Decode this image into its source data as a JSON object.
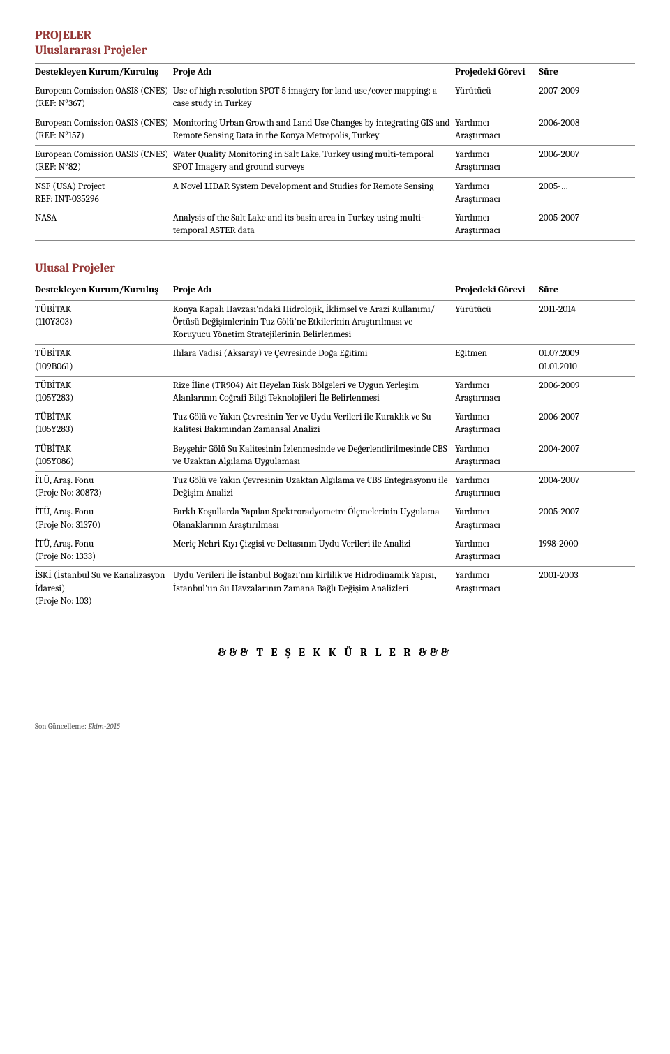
{
  "sectionTitle": "PROJELER",
  "intl": {
    "title": "Uluslararası Projeler",
    "headers": {
      "org": "Destekleyen Kurum/Kuruluş",
      "proj": "Proje Adı",
      "role": "Projedeki Görevi",
      "dur": "Süre"
    },
    "rows": [
      {
        "org": "European Comission OASIS (CNES)\n(REF: N°367)",
        "proj": "Use of high resolution SPOT-5 imagery for land use/cover mapping: a case study in Turkey",
        "role": "Yürütücü",
        "dur": "2007-2009"
      },
      {
        "org": "European Comission OASIS (CNES)\n(REF: N°157)",
        "proj": "Monitoring Urban Growth and Land Use Changes by integrating GIS and Remote Sensing Data in the Konya Metropolis, Turkey",
        "role": "Yardımcı Araştırmacı",
        "dur": "2006-2008"
      },
      {
        "org": "European Comission OASIS (CNES)\n(REF: N°82)",
        "proj": "Water Quality Monitoring in Salt Lake, Turkey using multi-temporal SPOT Imagery and ground surveys",
        "role": "Yardımcı Araştırmacı",
        "dur": "2006-2007"
      },
      {
        "org": "NSF (USA) Project\nREF: INT-035296",
        "proj": "A Novel LIDAR System Development and Studies for Remote Sensing",
        "role": "Yardımcı Araştırmacı",
        "dur": "2005-…"
      },
      {
        "org": "NASA",
        "proj": "Analysis of the Salt Lake and its basin area in Turkey using multi-temporal ASTER data",
        "role": "Yardımcı Araştırmacı",
        "dur": "2005-2007"
      }
    ]
  },
  "natl": {
    "title": "Ulusal Projeler",
    "headers": {
      "org": "Destekleyen Kurum/Kuruluş",
      "proj": "Proje Adı",
      "role": "Projedeki Görevi",
      "dur": "Süre"
    },
    "rows": [
      {
        "org": "TÜBİTAK\n(110Y303)",
        "proj": "Konya Kapalı Havzası'ndaki Hidrolojik, İklimsel ve Arazi Kullanımı/Örtüsü Değişimlerinin Tuz Gölü'ne Etkilerinin Araştırılması ve Koruyucu Yönetim Stratejilerinin Belirlenmesi",
        "role": "Yürütücü",
        "dur": "2011-2014"
      },
      {
        "org": "TÜBİTAK\n(109B061)",
        "proj": "Ihlara Vadisi (Aksaray) ve Çevresinde Doğa Eğitimi",
        "role": "Eğitmen",
        "dur": "01.07.2009\n01.01.2010"
      },
      {
        "org": "TÜBİTAK\n(105Y283)",
        "proj": "Rize İline (TR904) Ait Heyelan Risk Bölgeleri ve Uygun Yerleşim Alanlarının Coğrafi Bilgi Teknolojileri İle Belirlenmesi",
        "role": "Yardımcı Araştırmacı",
        "dur": "2006-2009"
      },
      {
        "org": "TÜBİTAK\n(105Y283)",
        "proj": "Tuz Gölü ve Yakın Çevresinin Yer ve Uydu Verileri ile Kuraklık ve Su Kalitesi Bakımından Zamansal Analizi",
        "role": "Yardımcı Araştırmacı",
        "dur": "2006-2007"
      },
      {
        "org": "TÜBİTAK\n(105Y086)",
        "proj": "Beyşehir Gölü Su Kalitesinin İzlenmesinde ve Değerlendirilmesinde CBS ve Uzaktan Algılama Uygulaması",
        "role": "Yardımcı Araştırmacı",
        "dur": "2004-2007"
      },
      {
        "org": "İTÜ, Araş. Fonu\n(Proje No: 30873)",
        "proj": "Tuz Gölü ve Yakın Çevresinin Uzaktan Algılama ve CBS Entegrasyonu ile Değişim Analizi",
        "role": "Yardımcı Araştırmacı",
        "dur": "2004-2007"
      },
      {
        "org": "İTÜ, Araş. Fonu\n(Proje No: 31370)",
        "proj": "Farklı Koşullarda Yapılan Spektroradyometre Ölçmelerinin Uygulama Olanaklarının Araştırılması",
        "role": "Yardımcı Araştırmacı",
        "dur": "2005-2007"
      },
      {
        "org": "İTÜ, Araş. Fonu\n(Proje No: 1333)",
        "proj": "Meriç Nehri Kıyı Çizgisi ve Deltasının Uydu Verileri ile Analizi",
        "role": "Yardımcı Araştırmacı",
        "dur": "1998-2000"
      },
      {
        "org": "İSKİ (İstanbul Su ve Kanalizasyon İdaresi)\n(Proje No: 103)",
        "proj": "Uydu Verileri İle İstanbul Boğazı'nın kirlilik ve Hidrodinamik Yapısı, İstanbul'un Su Havzalarının Zamana Bağlı Değişim Analizleri",
        "role": "Yardımcı Araştırmacı",
        "dur": "2001-2003"
      }
    ]
  },
  "thanks": "&&&   T E Ş E K K Ü R L E R   &&&",
  "footer": {
    "prefix": "Son Güncelleme: ",
    "date": "Ekim-2015"
  },
  "colors": {
    "heading": "#943634",
    "text": "#000000",
    "border": "#888888",
    "background": "#ffffff"
  }
}
